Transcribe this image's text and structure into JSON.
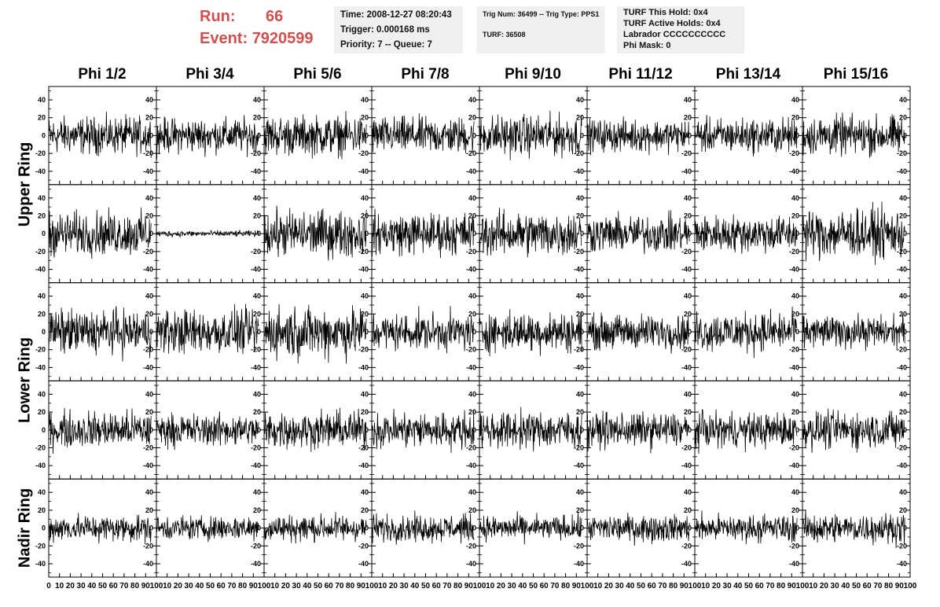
{
  "header": {
    "run_label": "Run:",
    "run_value": "66",
    "event_label": "Event:",
    "event_value": "7920599"
  },
  "info_boxes": [
    {
      "lines": [
        "Time: 2008-12-27 08:20:43",
        "Trigger: 0.000168 ms",
        "Priority: 7 -- Queue: 7"
      ]
    },
    {
      "lines": [
        "Trig Num: 36499 -- Trig Type: PPS1",
        "TURF: 36508"
      ]
    },
    {
      "lines": [
        "TURF This Hold: 0x4",
        "TURF Active Holds: 0x4",
        "Labrador CCCCCCCCCC",
        "Phi Mask: 0"
      ]
    }
  ],
  "chart_data": {
    "type": "line",
    "columns": [
      "Phi 1/2",
      "Phi 3/4",
      "Phi 5/6",
      "Phi 7/8",
      "Phi 9/10",
      "Phi 11/12",
      "Phi 13/14",
      "Phi 15/16"
    ],
    "ring_labels": [
      {
        "text": "Upper Ring",
        "rows": [
          0,
          1
        ]
      },
      {
        "text": "Lower Ring",
        "rows": [
          2,
          3
        ]
      },
      {
        "text": "Nadir Ring",
        "rows": [
          4,
          4
        ]
      }
    ],
    "rows": 5,
    "xlim": [
      0,
      100
    ],
    "ylim": [
      -55,
      55
    ],
    "x_ticks": [
      0,
      10,
      20,
      30,
      40,
      50,
      60,
      70,
      80,
      90,
      100
    ],
    "x_tick_labels_row": [
      "0",
      "10",
      "20",
      "30",
      "40",
      "50",
      "60",
      "70",
      "80",
      "90",
      "100"
    ],
    "y_ticks": [
      -40,
      -20,
      0,
      20,
      40
    ],
    "y_tick_labels": [
      "-40",
      "-20",
      "0",
      "20",
      "40"
    ],
    "samples_per_trace": 260,
    "trace_x_range": [
      0,
      95
    ],
    "panel_amplitudes": [
      [
        30,
        28,
        32,
        30,
        33,
        26,
        28,
        32
      ],
      [
        35,
        5,
        38,
        34,
        36,
        30,
        30,
        40
      ],
      [
        36,
        36,
        42,
        30,
        32,
        28,
        32,
        26
      ],
      [
        30,
        26,
        30,
        30,
        30,
        28,
        28,
        30
      ],
      [
        22,
        20,
        22,
        22,
        20,
        22,
        22,
        24
      ]
    ],
    "grid": false,
    "line_color": "#000000"
  }
}
